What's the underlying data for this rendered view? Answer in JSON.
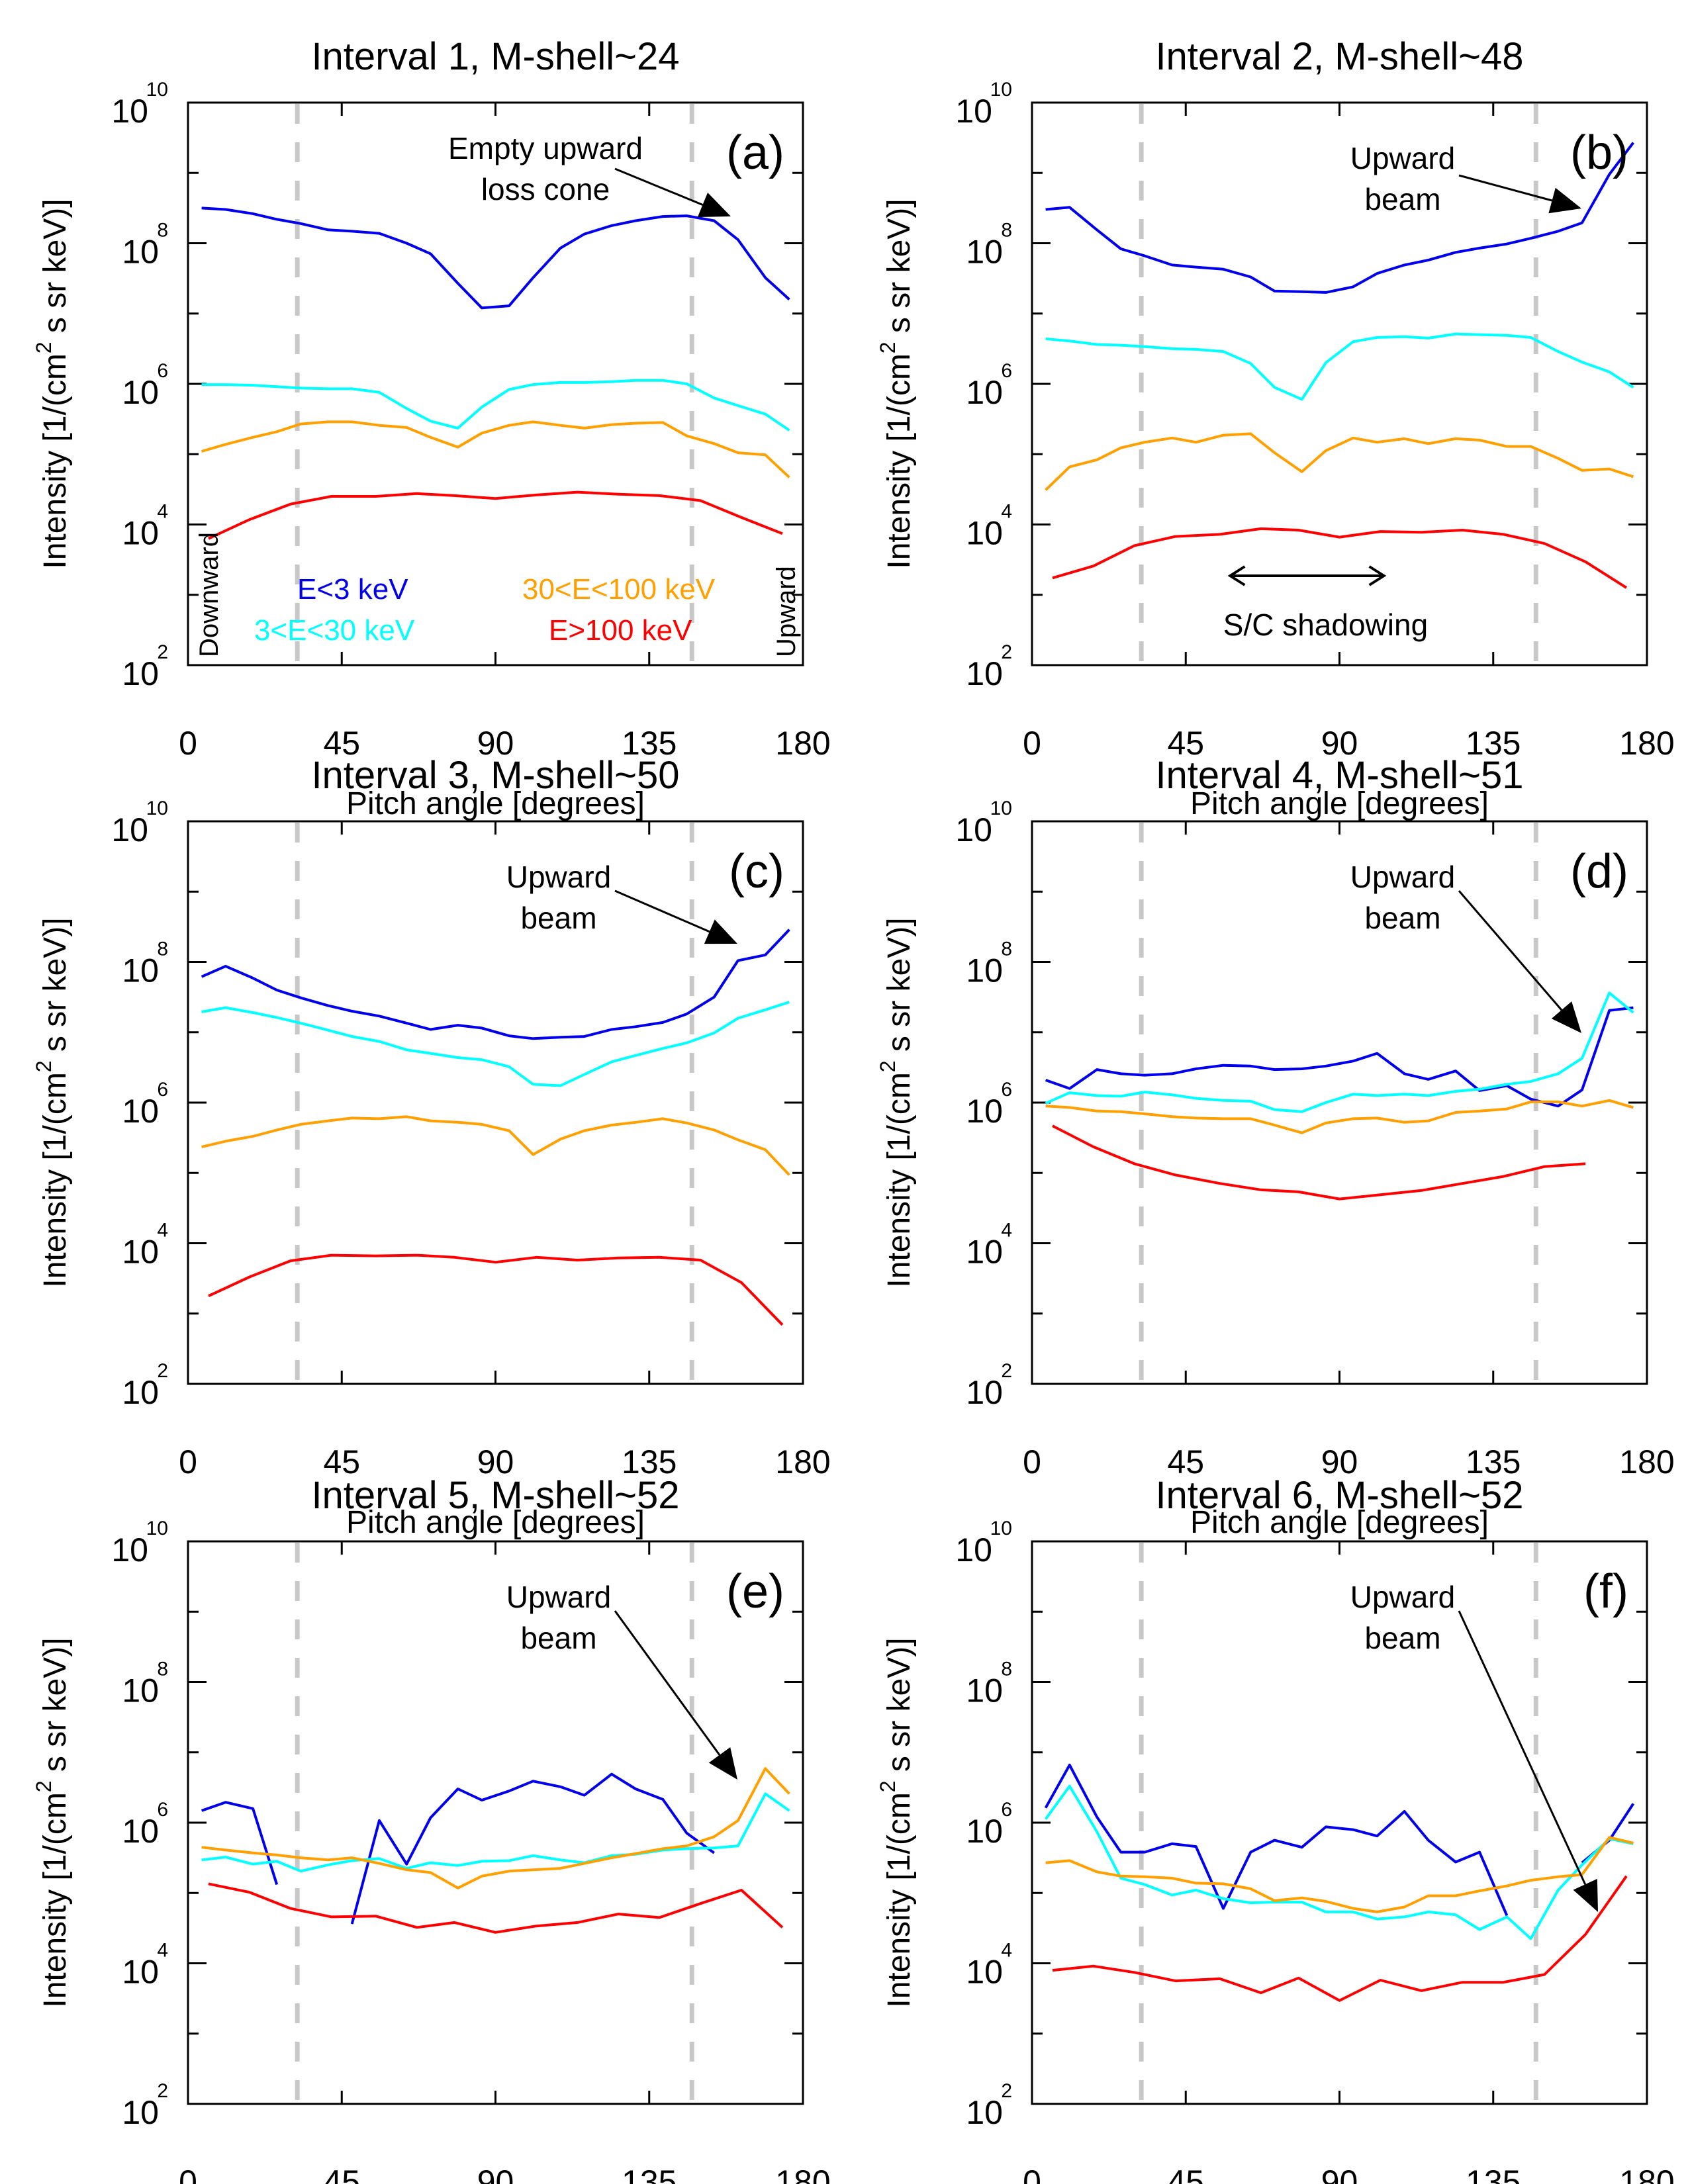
{
  "chart_data": {
    "type": "line",
    "layout": "3x2 grid of panels",
    "shared": {
      "xlabel": "Pitch angle [degrees]",
      "ylabel": "Intensity [1/(cm² s sr keV)]",
      "ylabel_parts": {
        "pre": "Intensity [1/(cm",
        "sup": "2",
        "post": " s sr keV)]"
      },
      "xlim": [
        0,
        180
      ],
      "ylim": [
        100,
        10000000000
      ],
      "yscale": "log",
      "x_ticks": [
        0,
        45,
        90,
        135,
        180
      ],
      "y_ticks": [
        {
          "base": "10",
          "exp": "2",
          "value": 100
        },
        {
          "base": "10",
          "exp": "4",
          "value": 10000
        },
        {
          "base": "10",
          "exp": "6",
          "value": 1000000
        },
        {
          "base": "10",
          "exp": "8",
          "value": 100000000
        },
        {
          "base": "10",
          "exp": "10",
          "value": 10000000000
        }
      ],
      "reference_lines": {
        "style": "dashed",
        "color": "#c8c8c8",
        "x": [
          32,
          147.5
        ]
      },
      "series_styles": [
        {
          "key": "low",
          "name": "E<3 keV",
          "color": "#0000ee"
        },
        {
          "key": "mid",
          "name": "3<E<30 keV",
          "color": "#00ffff"
        },
        {
          "key": "high",
          "name": "30<E<100 keV",
          "color": "#ffa000"
        },
        {
          "key": "top",
          "name": "E>100 keV",
          "color": "#ff0000"
        }
      ],
      "angles_24": [
        4,
        11,
        19,
        26,
        33,
        41,
        48,
        56,
        64,
        71,
        79,
        86,
        94,
        101,
        109,
        116,
        124,
        131,
        139,
        146,
        154,
        161,
        169,
        176
      ],
      "angles_15": [
        6,
        18,
        30,
        42,
        55,
        67,
        78,
        90,
        102,
        114,
        126,
        138,
        150,
        162,
        174
      ]
    },
    "panels": [
      {
        "id": "a",
        "title": "Interval 1, M-shell~24",
        "panel_label": "(a)",
        "annotations": [
          {
            "text": [
              "Empty upward",
              "loss cone"
            ],
            "arrow": true
          }
        ],
        "side_labels": {
          "left": "Downward",
          "right": "Upward"
        },
        "legend": [
          "E<3 keV",
          "30<E<100 keV",
          "3<E<30 keV",
          "E>100 keV"
        ],
        "series_log10": {
          "low": [
            8.5,
            8.48,
            8.42,
            8.34,
            8.28,
            8.19,
            8.17,
            8.14,
            8.0,
            7.85,
            7.43,
            7.08,
            7.11,
            7.51,
            7.93,
            8.13,
            8.25,
            8.32,
            8.38,
            8.39,
            8.32,
            8.05,
            7.51,
            7.2
          ],
          "mid": [
            5.99,
            5.99,
            5.98,
            5.96,
            5.94,
            5.93,
            5.93,
            5.88,
            5.65,
            5.47,
            5.37,
            5.67,
            5.92,
            5.99,
            6.02,
            6.02,
            6.03,
            6.05,
            6.05,
            6.0,
            5.8,
            5.69,
            5.57,
            5.34
          ],
          "high": [
            5.04,
            5.14,
            5.24,
            5.32,
            5.43,
            5.46,
            5.46,
            5.41,
            5.38,
            5.24,
            5.1,
            5.3,
            5.41,
            5.46,
            5.41,
            5.37,
            5.42,
            5.44,
            5.45,
            5.26,
            5.15,
            5.02,
            4.99,
            4.67
          ],
          "top": [
            3.8,
            4.07,
            4.29,
            4.4,
            4.4,
            4.44,
            4.41,
            4.37,
            4.42,
            4.46,
            4.43,
            4.41,
            4.34,
            4.1,
            3.87
          ]
        }
      },
      {
        "id": "b",
        "title": "Interval 2, M-shell~48",
        "panel_label": "(b)",
        "annotations": [
          {
            "text": [
              "Upward",
              "beam"
            ],
            "arrow": true
          },
          {
            "text": [
              "S/C shadowing"
            ],
            "double_arrow_x": [
              58,
              103
            ]
          }
        ],
        "series_log10": {
          "low": [
            8.48,
            8.51,
            8.19,
            7.92,
            7.82,
            7.69,
            7.66,
            7.63,
            7.52,
            7.32,
            7.31,
            7.3,
            7.38,
            7.57,
            7.69,
            7.76,
            7.87,
            7.93,
            7.99,
            8.07,
            8.17,
            8.29,
            8.98,
            9.43
          ],
          "mid": [
            6.64,
            6.61,
            6.56,
            6.55,
            6.53,
            6.5,
            6.49,
            6.46,
            6.29,
            5.95,
            5.78,
            6.3,
            6.6,
            6.66,
            6.67,
            6.65,
            6.71,
            6.7,
            6.69,
            6.66,
            6.46,
            6.31,
            6.17,
            5.95
          ],
          "high": [
            4.49,
            4.82,
            4.92,
            5.09,
            5.17,
            5.23,
            5.17,
            5.27,
            5.29,
            5.02,
            4.75,
            5.05,
            5.23,
            5.17,
            5.22,
            5.15,
            5.22,
            5.2,
            5.11,
            5.11,
            4.94,
            4.77,
            4.79,
            4.68
          ],
          "top": [
            3.24,
            3.41,
            3.7,
            3.83,
            3.86,
            3.94,
            3.92,
            3.82,
            3.9,
            3.89,
            3.92,
            3.86,
            3.73,
            3.47,
            3.1
          ]
        }
      },
      {
        "id": "c",
        "title": "Interval 3, M-shell~50",
        "panel_label": "(c)",
        "annotations": [
          {
            "text": [
              "Upward",
              "beam"
            ],
            "arrow": true
          }
        ],
        "series_log10": {
          "low": [
            7.79,
            7.94,
            7.77,
            7.6,
            7.49,
            7.38,
            7.3,
            7.23,
            7.13,
            7.04,
            7.1,
            7.06,
            6.95,
            6.91,
            6.93,
            6.94,
            7.04,
            7.08,
            7.14,
            7.26,
            7.5,
            8.02,
            8.1,
            8.46
          ],
          "mid": [
            7.29,
            7.35,
            7.28,
            7.21,
            7.13,
            7.03,
            6.94,
            6.87,
            6.75,
            6.7,
            6.64,
            6.61,
            6.51,
            6.26,
            6.24,
            6.4,
            6.58,
            6.67,
            6.77,
            6.85,
            6.99,
            7.2,
            7.32,
            7.43
          ],
          "high": [
            5.37,
            5.45,
            5.52,
            5.61,
            5.69,
            5.74,
            5.78,
            5.77,
            5.8,
            5.74,
            5.72,
            5.69,
            5.6,
            5.26,
            5.48,
            5.6,
            5.68,
            5.72,
            5.77,
            5.71,
            5.61,
            5.47,
            5.33,
            4.97
          ],
          "top": [
            3.25,
            3.52,
            3.75,
            3.83,
            3.82,
            3.83,
            3.8,
            3.73,
            3.8,
            3.76,
            3.79,
            3.8,
            3.76,
            3.44,
            2.84
          ]
        }
      },
      {
        "id": "d",
        "title": "Interval 4, M-shell~51",
        "panel_label": "(d)",
        "annotations": [
          {
            "text": [
              "Upward",
              "beam"
            ],
            "arrow": true
          }
        ],
        "series_log10": {
          "low": [
            6.32,
            6.2,
            6.47,
            6.41,
            6.39,
            6.41,
            6.48,
            6.53,
            6.52,
            6.47,
            6.48,
            6.52,
            6.59,
            6.7,
            6.41,
            6.33,
            6.45,
            6.17,
            6.24,
            6.05,
            5.95,
            6.18,
            7.31,
            7.35
          ],
          "mid": [
            5.99,
            6.14,
            6.1,
            6.09,
            6.15,
            6.11,
            6.06,
            6.03,
            6.02,
            5.9,
            5.87,
            6.0,
            6.12,
            6.1,
            6.12,
            6.1,
            6.16,
            6.19,
            6.26,
            6.3,
            6.41,
            6.63,
            7.56,
            7.28
          ],
          "high": [
            5.95,
            5.93,
            5.88,
            5.87,
            5.84,
            5.8,
            5.78,
            5.77,
            5.77,
            5.68,
            5.57,
            5.71,
            5.77,
            5.78,
            5.72,
            5.74,
            5.86,
            5.88,
            5.91,
            6.01,
            6.01,
            5.95,
            6.03,
            5.93
          ],
          "top": [
            5.67,
            5.37,
            5.13,
            4.97,
            4.85,
            4.76,
            4.73,
            4.63,
            4.69,
            4.75,
            4.85,
            4.95,
            5.09,
            5.13,
            null
          ]
        }
      },
      {
        "id": "e",
        "title": "Interval 5, M-shell~52",
        "panel_label": "(e)",
        "annotations": [
          {
            "text": [
              "Upward",
              "beam"
            ],
            "arrow": true
          }
        ],
        "series_log10": {
          "low": [
            6.17,
            6.29,
            6.2,
            5.12,
            null,
            null,
            4.56,
            6.03,
            5.41,
            6.07,
            6.48,
            6.32,
            6.45,
            6.59,
            6.51,
            6.39,
            6.69,
            6.48,
            6.33,
            5.85,
            5.57,
            null,
            null,
            null
          ],
          "mid": [
            5.47,
            5.51,
            5.41,
            5.45,
            5.31,
            5.4,
            5.46,
            5.49,
            5.35,
            5.43,
            5.39,
            5.45,
            5.46,
            5.53,
            5.47,
            5.43,
            5.53,
            5.55,
            5.61,
            5.63,
            5.64,
            5.67,
            6.41,
            6.17
          ],
          "high": [
            5.65,
            5.61,
            5.57,
            5.54,
            5.5,
            5.47,
            5.5,
            5.42,
            5.33,
            5.29,
            5.07,
            5.24,
            5.31,
            5.33,
            5.35,
            5.42,
            5.5,
            5.56,
            5.63,
            5.67,
            5.8,
            6.03,
            6.77,
            6.41
          ],
          "top": [
            5.13,
            5.01,
            4.78,
            4.66,
            4.67,
            4.51,
            4.58,
            4.44,
            4.53,
            4.58,
            4.7,
            4.65,
            4.85,
            5.04,
            4.51
          ]
        }
      },
      {
        "id": "f",
        "title": "Interval 6, M-shell~52",
        "panel_label": "(f)",
        "annotations": [
          {
            "text": [
              "Upward",
              "beam"
            ],
            "arrow": true
          }
        ],
        "series_log10": {
          "low": [
            6.21,
            6.82,
            6.08,
            5.58,
            5.58,
            5.7,
            5.66,
            4.78,
            5.58,
            5.75,
            5.65,
            5.94,
            5.9,
            5.81,
            6.16,
            5.75,
            5.44,
            5.58,
            4.68,
            null,
            null,
            5.43,
            5.75,
            6.27
          ],
          "mid": [
            6.05,
            6.52,
            5.87,
            5.21,
            5.12,
            4.97,
            5.04,
            4.92,
            4.86,
            4.87,
            4.87,
            4.73,
            4.73,
            4.63,
            4.66,
            4.73,
            4.69,
            4.48,
            4.66,
            4.35,
            5.04,
            5.4,
            5.77,
            5.7
          ],
          "high": [
            5.43,
            5.46,
            5.3,
            5.24,
            5.23,
            5.21,
            5.14,
            5.13,
            5.06,
            4.89,
            4.93,
            4.88,
            4.78,
            4.73,
            4.8,
            4.96,
            4.96,
            5.03,
            5.1,
            5.18,
            5.23,
            5.26,
            5.79,
            5.71
          ],
          "top": [
            3.9,
            3.96,
            3.87,
            3.75,
            3.78,
            3.58,
            3.79,
            3.47,
            3.76,
            3.61,
            3.73,
            3.73,
            3.84,
            4.41,
            5.24
          ]
        }
      }
    ]
  }
}
